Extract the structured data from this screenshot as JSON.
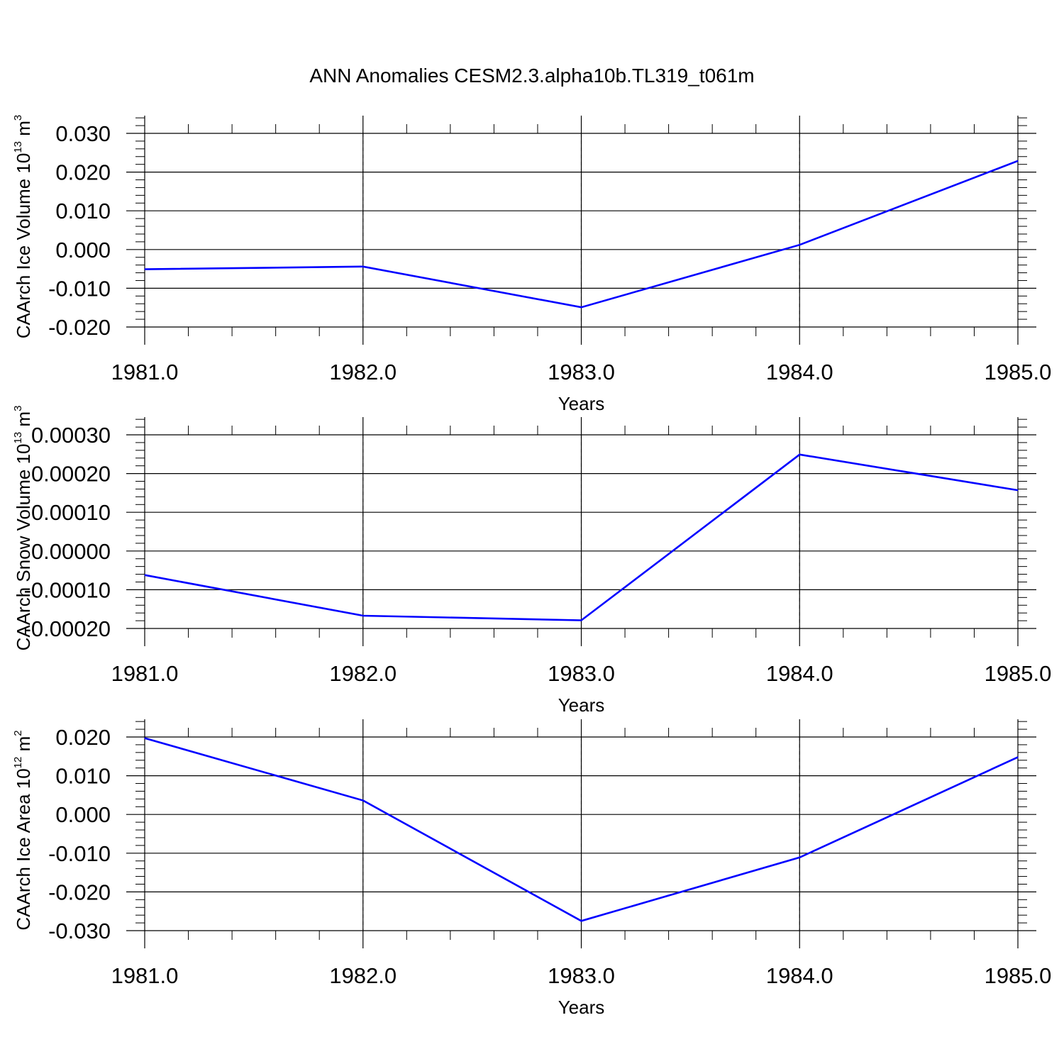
{
  "figure": {
    "title": "ANN Anomalies CESM2.3.alpha10b.TL319_t061m"
  },
  "chart_data": [
    {
      "type": "line",
      "title": "",
      "xlabel": "Years",
      "ylabel": "CAArch Ice Volume 10",
      "ylabel_exponent": "13",
      "ylabel_unit": "m",
      "ylabel_unit_exponent": "3",
      "x": [
        1981.0,
        1982.0,
        1983.0,
        1984.0,
        1985.0
      ],
      "xticks": [
        "1981.0",
        "1982.0",
        "1983.0",
        "1984.0",
        "1985.0"
      ],
      "xlim": [
        1981.0,
        1985.0
      ],
      "ylim": [
        -0.02,
        0.03
      ],
      "yticks": [
        -0.02,
        -0.01,
        0.0,
        0.01,
        0.02,
        0.03
      ],
      "ytick_labels": [
        "-0.020",
        "-0.010",
        "0.000",
        "0.010",
        "0.020",
        "0.030"
      ],
      "series": [
        {
          "color": "#0000ff",
          "values": [
            -0.0051,
            -0.0044,
            -0.0149,
            0.0012,
            0.0229
          ]
        }
      ],
      "grid": "vertical dashed at major x ticks",
      "legend": "none"
    },
    {
      "type": "line",
      "title": "",
      "xlabel": "Years",
      "ylabel": "CAArch Snow Volume 10",
      "ylabel_exponent": "13",
      "ylabel_unit": "m",
      "ylabel_unit_exponent": "3",
      "x": [
        1981.0,
        1982.0,
        1983.0,
        1984.0,
        1985.0
      ],
      "xticks": [
        "1981.0",
        "1982.0",
        "1983.0",
        "1984.0",
        "1985.0"
      ],
      "xlim": [
        1981.0,
        1985.0
      ],
      "ylim": [
        -0.0002,
        0.0003
      ],
      "yticks": [
        -0.0002,
        -0.0001,
        0.0,
        0.0001,
        0.0002,
        0.0003
      ],
      "ytick_labels": [
        "-0.00020",
        "-0.00010",
        "0.00000",
        "0.00010",
        "0.00020",
        "0.00030"
      ],
      "series": [
        {
          "color": "#0000ff",
          "values": [
            -6.2e-05,
            -0.000167,
            -0.000179,
            0.000249,
            0.000157
          ]
        }
      ],
      "grid": "vertical dashed at major x ticks",
      "legend": "none"
    },
    {
      "type": "line",
      "title": "",
      "xlabel": "Years",
      "ylabel": "CAArch Ice Area 10",
      "ylabel_exponent": "12",
      "ylabel_unit": "m",
      "ylabel_unit_exponent": "2",
      "x": [
        1981.0,
        1982.0,
        1983.0,
        1984.0,
        1985.0
      ],
      "xticks": [
        "1981.0",
        "1982.0",
        "1983.0",
        "1984.0",
        "1985.0"
      ],
      "xlim": [
        1981.0,
        1985.0
      ],
      "ylim": [
        -0.03,
        0.02
      ],
      "yticks": [
        -0.03,
        -0.02,
        -0.01,
        0.0,
        0.01,
        0.02
      ],
      "ytick_labels": [
        "-0.030",
        "-0.020",
        "-0.010",
        "0.000",
        "0.010",
        "0.020"
      ],
      "series": [
        {
          "color": "#0000ff",
          "values": [
            0.0197,
            0.0036,
            -0.0275,
            -0.0111,
            0.0148
          ]
        }
      ],
      "grid": "vertical dashed at major x ticks",
      "legend": "none"
    }
  ]
}
